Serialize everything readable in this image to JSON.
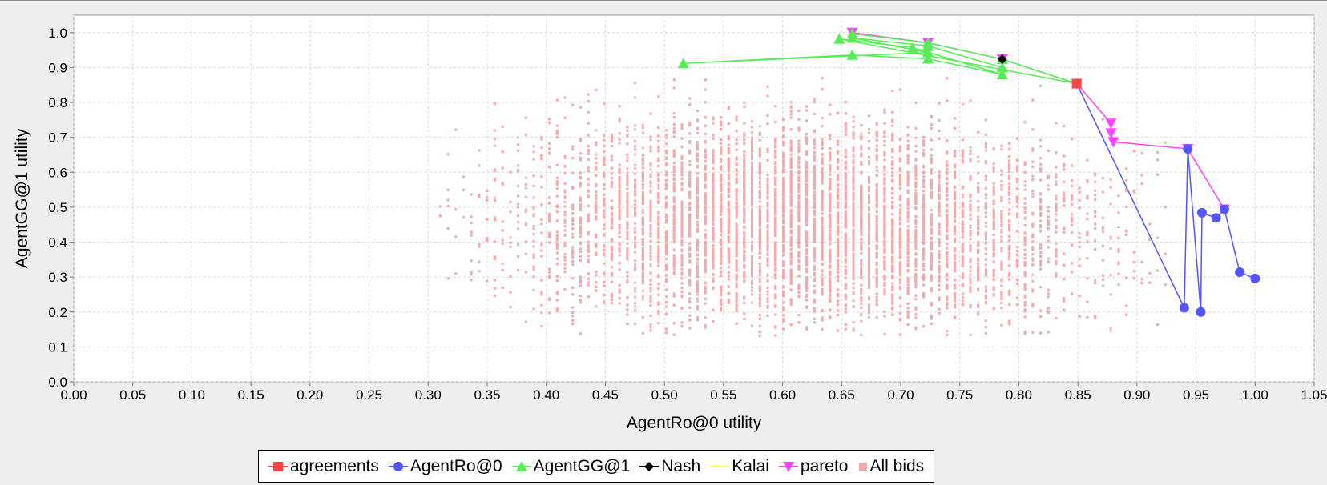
{
  "chart_data": {
    "type": "scatter",
    "title": "",
    "xlabel": "AgentRo@0 utility",
    "ylabel": "AgentGG@1 utility",
    "xlim": [
      0.0,
      1.05
    ],
    "ylim": [
      0.0,
      1.05
    ],
    "x_ticks": [
      "0.00",
      "0.05",
      "0.10",
      "0.15",
      "0.20",
      "0.25",
      "0.30",
      "0.35",
      "0.40",
      "0.45",
      "0.50",
      "0.55",
      "0.60",
      "0.65",
      "0.70",
      "0.75",
      "0.80",
      "0.85",
      "0.90",
      "0.95",
      "1.00",
      "1.05"
    ],
    "y_ticks": [
      "0.0",
      "0.1",
      "0.2",
      "0.3",
      "0.4",
      "0.5",
      "0.6",
      "0.7",
      "0.8",
      "0.9",
      "1.0"
    ],
    "grid": true,
    "legend_position": "bottom",
    "series": [
      {
        "name": "agreements",
        "color": "#ff4444",
        "marker": "square",
        "points": [
          [
            0.849,
            0.854
          ]
        ]
      },
      {
        "name": "AgentRo@0",
        "color": "#5555ff",
        "marker": "circle",
        "points": [
          [
            1.0,
            0.296
          ],
          [
            0.987,
            0.314
          ],
          [
            0.974,
            0.494
          ],
          [
            0.967,
            0.469
          ],
          [
            0.955,
            0.484
          ],
          [
            0.954,
            0.2
          ],
          [
            0.943,
            0.667
          ],
          [
            0.94,
            0.212
          ],
          [
            0.849,
            0.854
          ]
        ]
      },
      {
        "name": "AgentGG@1",
        "color": "#55ee55",
        "marker": "triangle",
        "points": [
          [
            0.659,
            0.997
          ],
          [
            0.723,
            0.971
          ],
          [
            0.786,
            0.924
          ],
          [
            0.849,
            0.854
          ],
          [
            0.648,
            0.982
          ],
          [
            0.71,
            0.957
          ],
          [
            0.786,
            0.88
          ],
          [
            0.723,
            0.925
          ],
          [
            0.659,
            0.936
          ],
          [
            0.516,
            0.912
          ],
          [
            0.723,
            0.943
          ],
          [
            0.659,
            0.985
          ],
          [
            0.723,
            0.962
          ],
          [
            0.786,
            0.9
          ]
        ]
      },
      {
        "name": "Nash",
        "color": "#000000",
        "marker": "diamond",
        "points": [
          [
            0.786,
            0.924
          ]
        ]
      },
      {
        "name": "Kalai",
        "color": "#ffff44",
        "marker": "line",
        "points": []
      },
      {
        "name": "pareto",
        "color": "#ff44ff",
        "marker": "triangle-down",
        "points": [
          [
            0.659,
            1.0
          ],
          [
            0.723,
            0.971
          ],
          [
            0.786,
            0.924
          ],
          [
            0.849,
            0.854
          ],
          [
            0.878,
            0.74
          ],
          [
            0.878,
            0.712
          ],
          [
            0.88,
            0.687
          ],
          [
            0.943,
            0.667
          ],
          [
            0.974,
            0.494
          ]
        ]
      },
      {
        "name": "All bids",
        "color": "#f4aaaa",
        "marker": "small-square",
        "count": 9000,
        "x_range": [
          0.31,
          0.93
        ],
        "y_range": [
          0.13,
          0.88
        ]
      }
    ]
  }
}
